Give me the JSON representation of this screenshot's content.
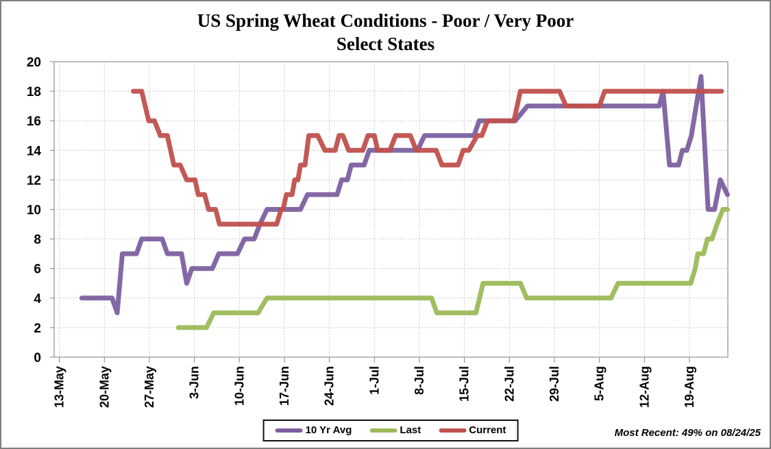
{
  "title": {
    "line1": "US Spring Wheat Conditions - Poor / Very Poor",
    "line2": "Select States"
  },
  "footer": {
    "note": "Most Recent: 49% on 08/24/25"
  },
  "legend": [
    {
      "label": "10 Yr Avg",
      "color": "#7C60A0"
    },
    {
      "label": "Last",
      "color": "#9BBB59"
    },
    {
      "label": "Current",
      "color": "#C0504D"
    }
  ],
  "chart_data": {
    "type": "line",
    "title": "US Spring Wheat Conditions - Poor / Very Poor Select States",
    "xlabel": "",
    "ylabel": "",
    "x_unit": "days since 13-May",
    "x_tick_labels": [
      "13-May",
      "20-May",
      "27-May",
      "3-Jun",
      "10-Jun",
      "17-Jun",
      "24-Jun",
      "1-Jul",
      "8-Jul",
      "15-Jul",
      "22-Jul",
      "29-Jul",
      "5-Aug",
      "12-Aug",
      "19-Aug"
    ],
    "x_tick_days": [
      0,
      7,
      14,
      21,
      28,
      35,
      42,
      49,
      56,
      63,
      70,
      77,
      84,
      91,
      98
    ],
    "xlim_days": [
      0,
      104
    ],
    "ylim": [
      0,
      20
    ],
    "y_tick_step": 2,
    "grid": true,
    "legend_position": "bottom",
    "most_recent_annotation": "Most Recent: 49% on 08/24/25",
    "series": [
      {
        "name": "10 Yr Avg",
        "color": "#7C60A0",
        "points": [
          [
            3.5,
            4
          ],
          [
            8.2,
            4
          ],
          [
            9,
            3
          ],
          [
            9.8,
            7
          ],
          [
            12,
            7
          ],
          [
            12.8,
            8
          ],
          [
            16,
            8
          ],
          [
            16.8,
            7
          ],
          [
            19,
            7
          ],
          [
            19.8,
            5
          ],
          [
            20.6,
            6
          ],
          [
            23.8,
            6
          ],
          [
            24.8,
            7
          ],
          [
            27.7,
            7
          ],
          [
            28.8,
            8
          ],
          [
            30.3,
            8
          ],
          [
            31.2,
            9
          ],
          [
            32.3,
            10
          ],
          [
            37.5,
            10
          ],
          [
            38.6,
            11
          ],
          [
            43.2,
            11
          ],
          [
            43.9,
            12
          ],
          [
            44.8,
            12
          ],
          [
            45.4,
            13
          ],
          [
            47.4,
            13
          ],
          [
            48.2,
            14
          ],
          [
            55.7,
            14
          ],
          [
            56.8,
            15
          ],
          [
            64.5,
            15
          ],
          [
            65.3,
            16
          ],
          [
            70.9,
            16
          ],
          [
            72.8,
            17
          ],
          [
            93.3,
            17
          ],
          [
            93.9,
            18
          ],
          [
            94.9,
            13
          ],
          [
            96.3,
            13
          ],
          [
            96.9,
            14
          ],
          [
            97.6,
            14
          ],
          [
            98.3,
            15
          ],
          [
            99.8,
            19
          ],
          [
            100.9,
            10
          ],
          [
            101.9,
            10
          ],
          [
            102.8,
            12
          ],
          [
            103.9,
            11
          ]
        ]
      },
      {
        "name": "Last",
        "color": "#9BBB59",
        "points": [
          [
            18.5,
            2
          ],
          [
            22.9,
            2
          ],
          [
            24,
            3
          ],
          [
            30.9,
            3
          ],
          [
            32.3,
            4
          ],
          [
            57.9,
            4
          ],
          [
            58.7,
            3
          ],
          [
            64.8,
            3
          ],
          [
            65.9,
            5
          ],
          [
            71.7,
            5
          ],
          [
            72.7,
            4
          ],
          [
            85.8,
            4
          ],
          [
            86.9,
            5
          ],
          [
            98.2,
            5
          ],
          [
            98.9,
            6
          ],
          [
            99.3,
            7
          ],
          [
            100.2,
            7
          ],
          [
            100.8,
            8
          ],
          [
            101.5,
            8
          ],
          [
            102.3,
            9
          ],
          [
            103.2,
            10
          ],
          [
            103.9,
            10
          ]
        ]
      },
      {
        "name": "Current",
        "color": "#C0504D",
        "points": [
          [
            11.5,
            18
          ],
          [
            12.8,
            18
          ],
          [
            13.9,
            16
          ],
          [
            14.8,
            16
          ],
          [
            15.7,
            15
          ],
          [
            16.8,
            15
          ],
          [
            17.8,
            13
          ],
          [
            18.8,
            13
          ],
          [
            19.8,
            12
          ],
          [
            21.1,
            12
          ],
          [
            21.6,
            11
          ],
          [
            22.6,
            11
          ],
          [
            23.2,
            10
          ],
          [
            24.3,
            10
          ],
          [
            24.9,
            9
          ],
          [
            33.8,
            9
          ],
          [
            34.5,
            10
          ],
          [
            34.8,
            10
          ],
          [
            35.3,
            11
          ],
          [
            36.2,
            11
          ],
          [
            36.6,
            12
          ],
          [
            37.1,
            12
          ],
          [
            37.5,
            13
          ],
          [
            38.2,
            13
          ],
          [
            38.8,
            15
          ],
          [
            40.2,
            15
          ],
          [
            41.3,
            14
          ],
          [
            42.9,
            14
          ],
          [
            43.5,
            15
          ],
          [
            44.1,
            15
          ],
          [
            45,
            14
          ],
          [
            47.2,
            14
          ],
          [
            48,
            15
          ],
          [
            49,
            15
          ],
          [
            49.5,
            14
          ],
          [
            51.4,
            14
          ],
          [
            52.3,
            15
          ],
          [
            54.6,
            15
          ],
          [
            55.5,
            14
          ],
          [
            58.6,
            14
          ],
          [
            59.5,
            13
          ],
          [
            62,
            13
          ],
          [
            62.8,
            14
          ],
          [
            63.7,
            14
          ],
          [
            65,
            15
          ],
          [
            65.7,
            15
          ],
          [
            66.6,
            16
          ],
          [
            70.7,
            16
          ],
          [
            71.7,
            18
          ],
          [
            77.8,
            18
          ],
          [
            78.8,
            17
          ],
          [
            84,
            17
          ],
          [
            84.8,
            18
          ],
          [
            103,
            18
          ]
        ]
      }
    ]
  },
  "style": {
    "gridline_color": "#c9c9c9",
    "axis_color": "#808080",
    "plot_border_color": "#a6a6a6",
    "text_color": "#000000"
  }
}
